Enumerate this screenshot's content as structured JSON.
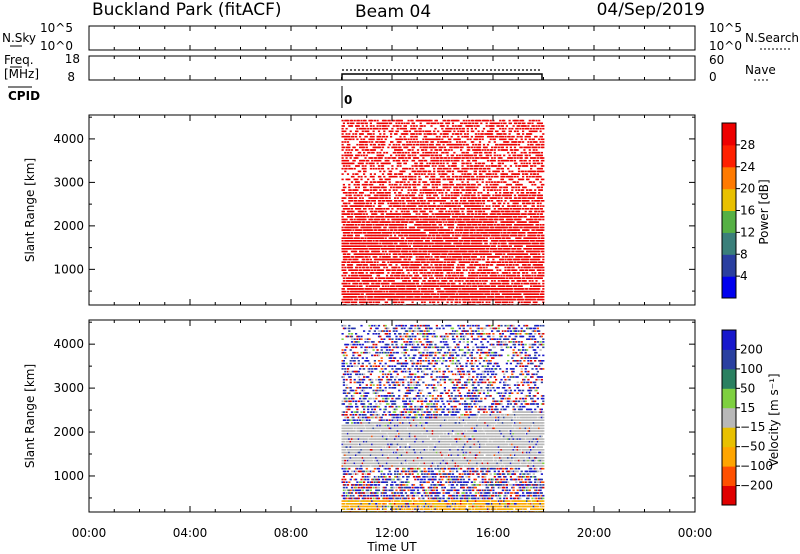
{
  "header": {
    "station": "Buckland Park (fitACF)",
    "beam": "Beam 04",
    "date": "04/Sep/2019"
  },
  "nsky_panel": {
    "label": "N.Sky",
    "left_ticks": [
      "10^5",
      "10^0"
    ],
    "right_ticks": [
      "10^5",
      "10^0"
    ],
    "right_label": "N.Search"
  },
  "freq_panel": {
    "label_line1": "Freq.",
    "label_line2": "[MHz]",
    "left_ticks": [
      "18",
      "8"
    ],
    "right_ticks": [
      "60",
      "0"
    ],
    "right_label": "Nave"
  },
  "cpid": {
    "label": "CPID",
    "value": "0"
  },
  "power_colorbar": {
    "label": "Power [dB]",
    "colors": [
      "#0000ee",
      "#2a3fa0",
      "#3a7f7a",
      "#55b044",
      "#e8c000",
      "#ff7a00",
      "#ff2000",
      "#ee0000"
    ],
    "tick_labels": [
      "4",
      "8",
      "12",
      "16",
      "20",
      "24",
      "28"
    ]
  },
  "velocity_colorbar": {
    "label": "Velocity [m s⁻¹]",
    "colors": [
      "#e00000",
      "#ff5000",
      "#ffa500",
      "#e8c000",
      "#b8b8b8",
      "#7ed040",
      "#2a8060",
      "#2a40a0",
      "#1818cc"
    ],
    "tick_labels": [
      "−200",
      "−100",
      "−50",
      "−15",
      "15",
      "50",
      "100",
      "200"
    ]
  },
  "chart_data": [
    {
      "type": "heatmap",
      "name": "power",
      "ylabel": "Slant Range [km]",
      "x_range_hours": [
        0,
        24
      ],
      "ylim_km": [
        180,
        4550
      ],
      "y_ticks": [
        1000,
        2000,
        3000,
        4000
      ],
      "data_time_range_hours": [
        10,
        18
      ],
      "dominant_color": "#ee0000",
      "density_profile": [
        {
          "range_km": 300,
          "density": 0.9
        },
        {
          "range_km": 1000,
          "density": 0.6
        },
        {
          "range_km": 1500,
          "density": 0.85
        },
        {
          "range_km": 2000,
          "density": 0.8
        },
        {
          "range_km": 2500,
          "density": 0.6
        },
        {
          "range_km": 3000,
          "density": 0.45
        },
        {
          "range_km": 4000,
          "density": 0.5
        },
        {
          "range_km": 4500,
          "density": 0.55
        }
      ]
    },
    {
      "type": "heatmap",
      "name": "velocity",
      "ylabel": "Slant Range [km]",
      "xlabel": "Time UT",
      "x_range_hours": [
        0,
        24
      ],
      "x_tick_labels": [
        "00:00",
        "04:00",
        "08:00",
        "12:00",
        "16:00",
        "20:00",
        "00:00"
      ],
      "ylim_km": [
        180,
        4550
      ],
      "y_ticks": [
        1000,
        2000,
        3000,
        4000
      ],
      "data_time_range_hours": [
        10,
        18
      ],
      "features": [
        {
          "kind": "ground_scatter_band",
          "color": "#b8b8b8",
          "range_km": [
            1200,
            2200
          ]
        },
        {
          "kind": "low_range_band",
          "color": "#ffa500",
          "range_km": [
            200,
            500
          ]
        }
      ]
    }
  ]
}
